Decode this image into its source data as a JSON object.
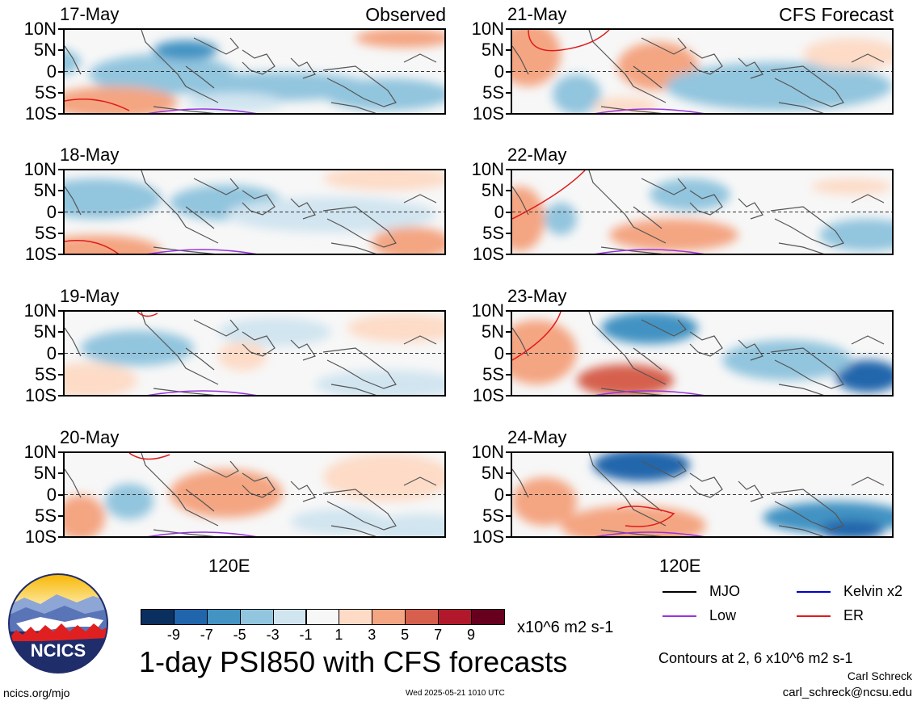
{
  "panels_left": [
    {
      "date": "17-May",
      "corner": "Observed"
    },
    {
      "date": "18-May",
      "corner": ""
    },
    {
      "date": "19-May",
      "corner": ""
    },
    {
      "date": "20-May",
      "corner": ""
    }
  ],
  "panels_right": [
    {
      "date": "21-May",
      "corner": "CFS Forecast"
    },
    {
      "date": "22-May",
      "corner": ""
    },
    {
      "date": "23-May",
      "corner": ""
    },
    {
      "date": "24-May",
      "corner": ""
    }
  ],
  "lat_labels": [
    "10N",
    "5N",
    "0",
    "5S",
    "10S"
  ],
  "lon_label": "120E",
  "colorbar": {
    "labels": [
      "-9",
      "-7",
      "-5",
      "-3",
      "-1",
      "1",
      "3",
      "5",
      "7",
      "9"
    ],
    "colors": [
      "#0b2f5e",
      "#2166ac",
      "#4393c3",
      "#92c5de",
      "#d1e5f0",
      "#f7f7f7",
      "#fddbc7",
      "#f4a582",
      "#d6604d",
      "#b2182b",
      "#67001f"
    ],
    "units": "x10^6 m2 s-1"
  },
  "legend": [
    {
      "label": "MJO",
      "color": "#000000"
    },
    {
      "label": "Kelvin x2",
      "color": "#0000cc"
    },
    {
      "label": "Low",
      "color": "#9933dd"
    },
    {
      "label": "ER",
      "color": "#e01b1b"
    }
  ],
  "title": "1-day PSI850 with CFS forecasts",
  "contours_note": "Contours at 2, 6 x10^6 m2 s-1",
  "author": "Carl Schreck",
  "email": "carl_schreck@ncsu.edu",
  "site": "ncics.org/mjo",
  "timestamp": "Wed 2025-05-21 1010 UTC",
  "logo_text": "NCICS"
}
